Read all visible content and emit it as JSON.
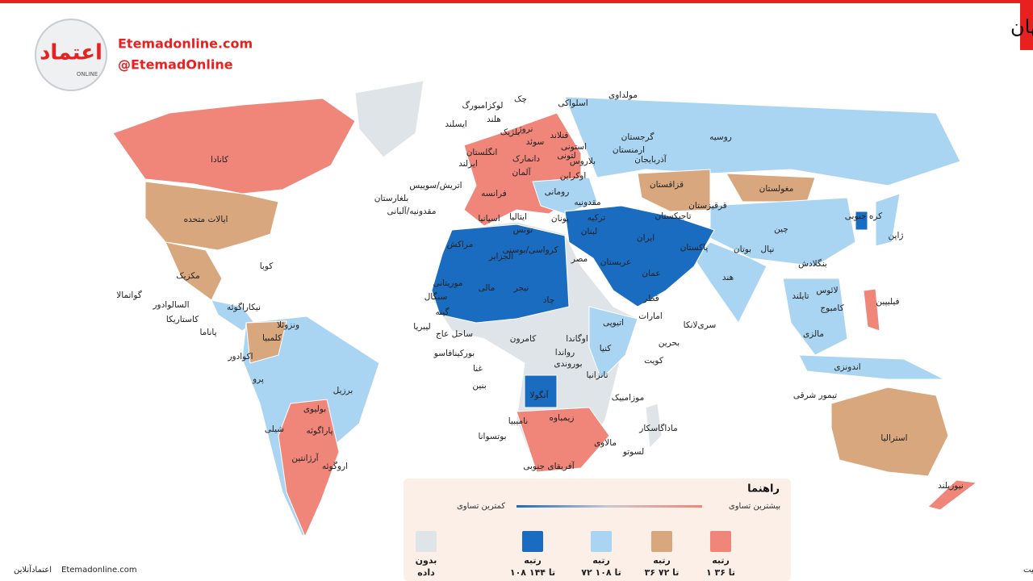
{
  "header": {
    "title": "نگاهی به تساوی زنان و مردان در کشورهای جهان",
    "site": "Etemadonline.com",
    "handle": "@EtemadOnline",
    "logo": "اعتماد",
    "logo_sub": "ONLINE"
  },
  "legend": {
    "title": "راهنما",
    "scale_high": "بیشترین تساوی",
    "scale_low": "کمترین تساوی",
    "items": [
      {
        "line1": "رتبه",
        "line2": "۱ تا ۳۶",
        "color": "#f0857a"
      },
      {
        "line1": "رتبه",
        "line2": "۳۶ تا ۷۲",
        "color": "#d9a77e"
      },
      {
        "line1": "رتبه",
        "line2": "۷۲ تا ۱۰۸",
        "color": "#a9d5f2"
      },
      {
        "line1": "رتبه",
        "line2": "۱۰۸ تا ۱۴۴",
        "color": "#1a6cc0"
      },
      {
        "line1": "بدون",
        "line2": "داده",
        "color": "#dfe4e8"
      }
    ]
  },
  "labels": [
    "کانادا",
    "ایالات متحده",
    "مکزیک",
    "کوبا",
    "گواتمالا",
    "السالوادور",
    "نیکاراگوئه",
    "کاستاریکا",
    "پاناما",
    "ونزوئلا",
    "کلمبیا",
    "اکوادور",
    "پرو",
    "برزیل",
    "بولیوی",
    "شیلی",
    "پاراگوئه",
    "آرژانتین",
    "اروگوئه",
    "ایسلند",
    "ایرلند",
    "انگلستان",
    "لوکزامبورگ",
    "هلند",
    "بلژیک",
    "چک",
    "نروژ",
    "سوئد",
    "فنلاند",
    "دانمارک",
    "آلمان",
    "فرانسه",
    "اتریش/سوییس",
    "بلغارستان",
    "مقدونیه/آلبانی",
    "اسپانیا",
    "ایتالیا",
    "اسلواکی",
    "مولداوی",
    "استونی",
    "لتونی",
    "بلاروس",
    "اوکراین",
    "رومانی",
    "مقدونیه",
    "یونان",
    "ترکیه",
    "تونس",
    "لبنان",
    "کرواسی/بوسنی",
    "مراکش",
    "الجزایر",
    "مصر",
    "گرجستان",
    "ارمنستان",
    "آذربایجان",
    "قزاقستان",
    "قرقیزستان",
    "تاجیکستان",
    "ایران",
    "عربستان",
    "عمان",
    "قطر",
    "امارات",
    "بحرین",
    "کویت",
    "پاکستان",
    "روسیه",
    "مغولستان",
    "چین",
    "کره جنوبی",
    "ژاپن",
    "بوتان",
    "نپال",
    "بنگلادش",
    "هند",
    "لائوس",
    "تایلند",
    "کامبوج",
    "فیلیپین",
    "سری‌لانکا",
    "مالزی",
    "اندونزی",
    "تیمور شرقی",
    "استرالیا",
    "نیوزیلند",
    "موریتانی",
    "سنگال",
    "مالی",
    "نیجر",
    "چاد",
    "گینه",
    "لیبریا",
    "ساحل عاج",
    "بورکینافاسو",
    "غنا",
    "بنین",
    "کامرون",
    "اتیوپی",
    "اوگاندا",
    "رواندا",
    "بوروندی",
    "کنیا",
    "تانزانیا",
    "آنگولا",
    "موزامبیک",
    "زیمباوه",
    "نامیبیا",
    "ماداگاسکار",
    "بوتسوانا",
    "مالاوی",
    "لسوتو",
    "آفریقای جنوبی"
  ],
  "footer": {
    "source": "منبع: گزارش جهانی شکاف جنسیت",
    "site": "Etemadonline.com",
    "brand": "اعتمادآنلاین"
  }
}
